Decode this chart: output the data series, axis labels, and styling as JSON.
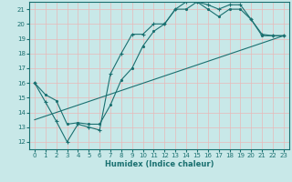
{
  "xlabel": "Humidex (Indice chaleur)",
  "background_color": "#c8e8e8",
  "grid_color": "#e8b8b8",
  "line_color": "#1a7070",
  "xlim": [
    -0.5,
    23.5
  ],
  "ylim": [
    11.5,
    21.5
  ],
  "xticks": [
    0,
    1,
    2,
    3,
    4,
    5,
    6,
    7,
    8,
    9,
    10,
    11,
    12,
    13,
    14,
    15,
    16,
    17,
    18,
    19,
    20,
    21,
    22,
    23
  ],
  "yticks": [
    12,
    13,
    14,
    15,
    16,
    17,
    18,
    19,
    20,
    21
  ],
  "line1_x": [
    0,
    1,
    2,
    3,
    4,
    5,
    6,
    7,
    8,
    9,
    10,
    11,
    12,
    13,
    14,
    15,
    16,
    17,
    18,
    19,
    20,
    21,
    22,
    23
  ],
  "line1_y": [
    16.0,
    14.7,
    13.4,
    12.0,
    13.2,
    13.0,
    12.8,
    16.6,
    18.0,
    19.3,
    19.3,
    20.0,
    20.0,
    21.0,
    21.5,
    21.5,
    21.3,
    21.0,
    21.3,
    21.3,
    20.3,
    19.3,
    19.2,
    19.2
  ],
  "line2_x": [
    0,
    1,
    2,
    3,
    4,
    5,
    6,
    7,
    8,
    9,
    10,
    11,
    12,
    13,
    14,
    15,
    16,
    17,
    18,
    19,
    20,
    21,
    22,
    23
  ],
  "line2_y": [
    16.0,
    15.2,
    14.8,
    13.2,
    13.3,
    13.2,
    13.2,
    14.5,
    16.2,
    17.0,
    18.5,
    19.5,
    20.0,
    21.0,
    21.0,
    21.5,
    21.0,
    20.5,
    21.0,
    21.0,
    20.3,
    19.2,
    19.2,
    19.2
  ],
  "line3_x": [
    0,
    23
  ],
  "line3_y": [
    13.5,
    19.2
  ]
}
